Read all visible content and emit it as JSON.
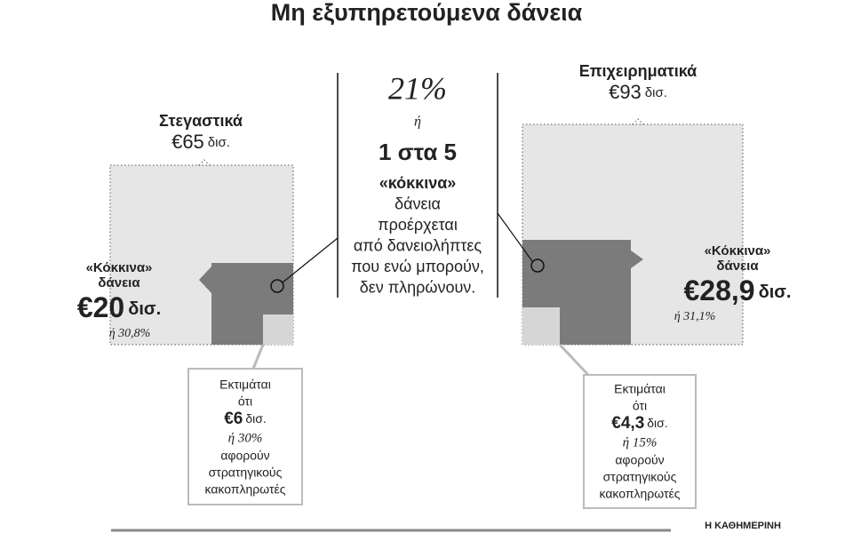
{
  "title": "Μη εξυπηρετούμενα δάνεια",
  "center": {
    "percent": "21%",
    "or": "ή",
    "ratio": "1 στα 5",
    "lines": [
      "«κόκκινα»",
      "δάνεια",
      "προέρχεται",
      "από δανειολήπτες",
      "που ενώ μπορούν,",
      "δεν πληρώνουν."
    ]
  },
  "left": {
    "label": "Στεγαστικά",
    "total": {
      "amount": "€65",
      "unit": "δισ."
    },
    "red_label": [
      "«Κόκκινα»",
      "δάνεια"
    ],
    "red": {
      "amount": "€20",
      "unit": "δισ."
    },
    "red_share": "ή 30,8%",
    "callout": {
      "intro": [
        "Εκτιμάται",
        "ότι"
      ],
      "amount": "€6",
      "unit": "δισ.",
      "share": "ή 30%",
      "outro": [
        "αφορούν",
        "στρατηγικούς",
        "κακοπληρωτές"
      ]
    }
  },
  "right": {
    "label": "Επιχειρηματικά",
    "total": {
      "amount": "€93",
      "unit": "δισ."
    },
    "red_label": [
      "«Κόκκινα»",
      "δάνεια"
    ],
    "red": {
      "amount": "€28,9",
      "unit": "δισ."
    },
    "red_share": "ή 31,1%",
    "callout": {
      "intro": [
        "Εκτιμάται",
        "ότι"
      ],
      "amount": "€4,3",
      "unit": "δισ.",
      "share": "ή 15%",
      "outro": [
        "αφορούν",
        "στρατηγικούς",
        "κακοπληρωτές"
      ]
    }
  },
  "footer": "Η ΚΑΘΗΜΕΡΙΝΗ"
}
